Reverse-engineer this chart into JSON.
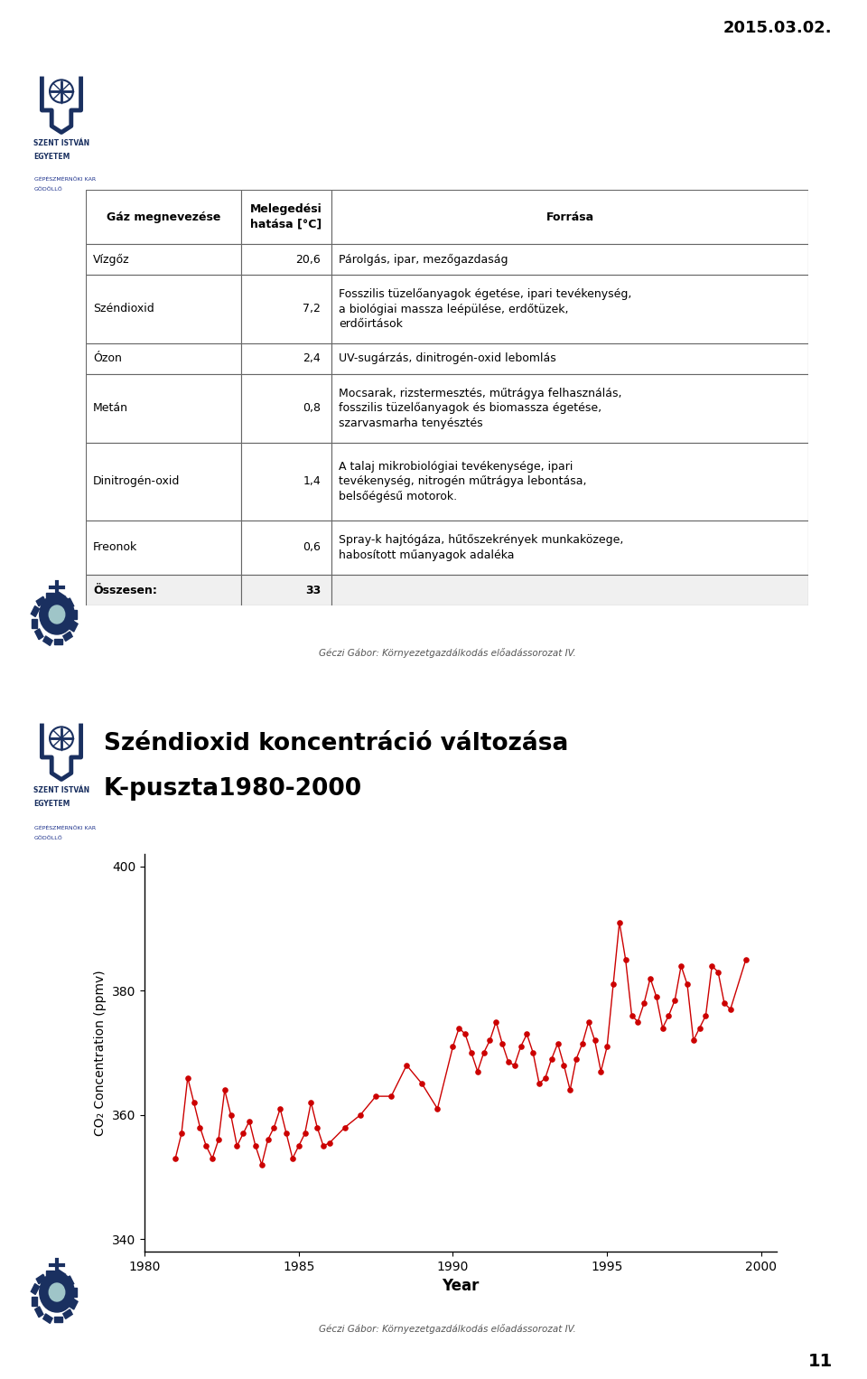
{
  "page_date": "2015.03.02.",
  "page_number": "11",
  "bg_color": "#ffffff",
  "slide_bg": "#9fc5c8",
  "slide_border": "#5a9aa0",
  "header_bar_color": "#1e3a8a",
  "table_header": [
    "Gáz megnevezése",
    "Melegedési\nhatása [°C]",
    "Forrása"
  ],
  "table_rows": [
    [
      "Vízgőz",
      "20,6",
      "Párolgás, ipar, mezőgazdaság"
    ],
    [
      "Széndioxid",
      "7,2",
      "Fosszilis tüzelőanyagok égetése, ipari tevékenység,\na biológiai massza leépülése, erdőtüzek,\nerdőirtások"
    ],
    [
      "Ózon",
      "2,4",
      "UV-sugárzás, dinitrogén-oxid lebomlás"
    ],
    [
      "Metán",
      "0,8",
      "Mocsarak, rizstermesztés, műtrágya felhasználás,\nfosszilis tüzelőanyagok és biomassza égetése,\nszarvasmarha tenyésztés"
    ],
    [
      "Dinitrogén-oxid",
      "1,4",
      "A talaj mikrobiológiai tevékenysége, ipari\ntevékenység, nitrogén műtrágya lebontása,\nbelsőégésű motorok."
    ],
    [
      "Freonok",
      "0,6",
      "Spray-k hajtógáza, hűtőszekrények munkaközege,\nhabosított műanyagok adaléka"
    ],
    [
      "Összesen:",
      "33",
      ""
    ]
  ],
  "footer": "Géczi Gábor: Környezetgazdálkodás előadássorozat IV.",
  "chart_title1": "Széndioxid koncentráció változása",
  "chart_title2": "K-puszta1980-2000",
  "chart_xlabel": "Year",
  "chart_ylabel": "CO₂ Concentration (ppmv)",
  "chart_ylim": [
    338,
    402
  ],
  "chart_yticks": [
    340,
    360,
    380,
    400
  ],
  "chart_xlim": [
    1980,
    2000.5
  ],
  "chart_xticks": [
    1980,
    1985,
    1990,
    1995,
    2000
  ],
  "chart_color": "#cc0000",
  "chart_data_x": [
    1981.0,
    1981.2,
    1981.4,
    1981.6,
    1981.8,
    1982.0,
    1982.2,
    1982.4,
    1982.6,
    1982.8,
    1983.0,
    1983.2,
    1983.4,
    1983.6,
    1983.8,
    1984.0,
    1984.2,
    1984.4,
    1984.6,
    1984.8,
    1985.0,
    1985.2,
    1985.4,
    1985.6,
    1985.8,
    1986.0,
    1986.5,
    1987.0,
    1987.5,
    1988.0,
    1988.5,
    1989.0,
    1989.5,
    1990.0,
    1990.2,
    1990.4,
    1990.6,
    1990.8,
    1991.0,
    1991.2,
    1991.4,
    1991.6,
    1991.8,
    1992.0,
    1992.2,
    1992.4,
    1992.6,
    1992.8,
    1993.0,
    1993.2,
    1993.4,
    1993.6,
    1993.8,
    1994.0,
    1994.2,
    1994.4,
    1994.6,
    1994.8,
    1995.0,
    1995.2,
    1995.4,
    1995.6,
    1995.8,
    1996.0,
    1996.2,
    1996.4,
    1996.6,
    1996.8,
    1997.0,
    1997.2,
    1997.4,
    1997.6,
    1997.8,
    1998.0,
    1998.2,
    1998.4,
    1998.6,
    1998.8,
    1999.0,
    1999.5
  ],
  "chart_data_y": [
    353.0,
    357.0,
    366.0,
    362.0,
    358.0,
    355.0,
    353.0,
    356.0,
    364.0,
    360.0,
    355.0,
    357.0,
    359.0,
    355.0,
    352.0,
    356.0,
    358.0,
    361.0,
    357.0,
    353.0,
    355.0,
    357.0,
    362.0,
    358.0,
    355.0,
    355.5,
    358.0,
    360.0,
    363.0,
    363.0,
    368.0,
    365.0,
    361.0,
    371.0,
    374.0,
    373.0,
    370.0,
    367.0,
    370.0,
    372.0,
    375.0,
    371.5,
    368.5,
    368.0,
    371.0,
    373.0,
    370.0,
    365.0,
    366.0,
    369.0,
    371.5,
    368.0,
    364.0,
    369.0,
    371.5,
    375.0,
    372.0,
    367.0,
    371.0,
    381.0,
    391.0,
    385.0,
    376.0,
    375.0,
    378.0,
    382.0,
    379.0,
    374.0,
    376.0,
    378.5,
    384.0,
    381.0,
    372.0,
    374.0,
    376.0,
    384.0,
    383.0,
    378.0,
    377.0,
    385.0
  ]
}
